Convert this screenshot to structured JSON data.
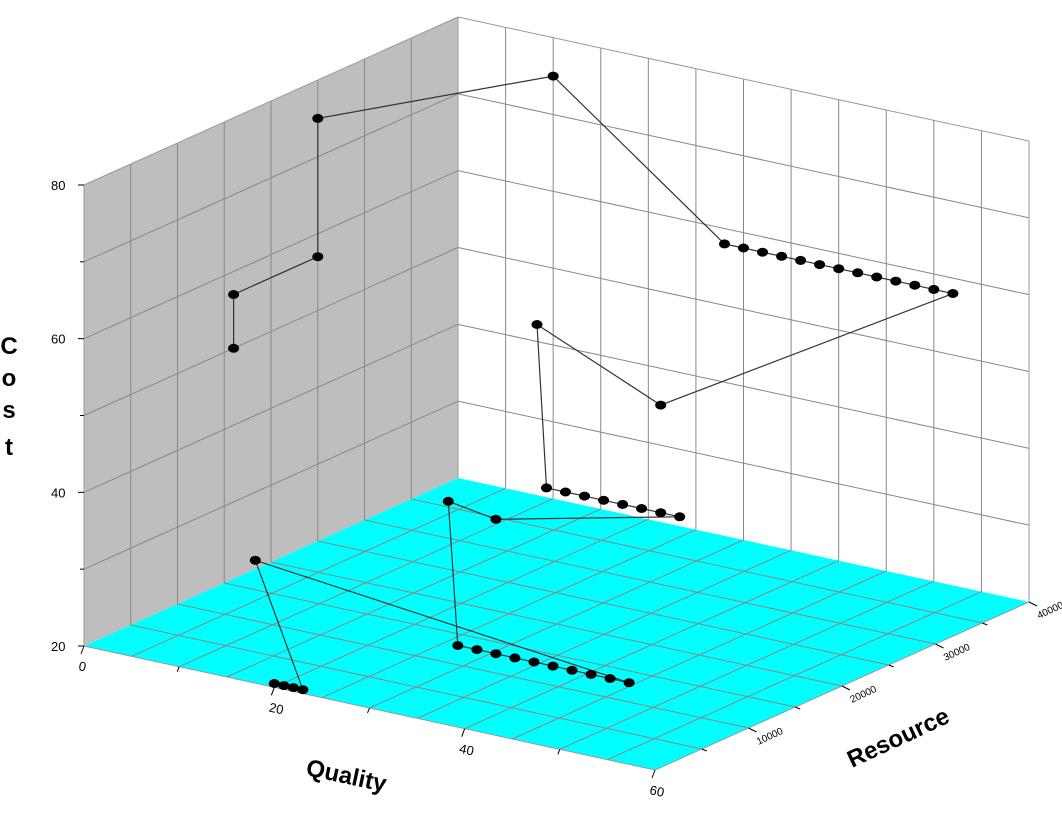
{
  "chart_data": {
    "type": "scatter3d",
    "title": "",
    "axes": {
      "x": {
        "label": "Quality",
        "range": [
          0,
          60
        ],
        "ticks": [
          "0",
          "20",
          "40",
          "60"
        ]
      },
      "y": {
        "label": "Resource",
        "range": [
          0,
          40000
        ],
        "ticks": [
          "10000",
          "20000",
          "30000",
          "40000"
        ]
      },
      "z": {
        "label": "Cost",
        "label_letters": [
          "C",
          "o",
          "s",
          "t"
        ],
        "range": [
          20,
          80
        ],
        "ticks": [
          "20",
          "40",
          "60",
          "80"
        ]
      }
    },
    "grid": true,
    "colors": {
      "floor": "#00ffff",
      "back_wall": "#ffffff",
      "side_wall": "#bebebe",
      "grid": "#888888",
      "line": "#333333",
      "marker": "#000000"
    },
    "series": [
      {
        "connected": true,
        "points": [
          [
            20,
            0,
            20.5
          ],
          [
            21,
            0,
            20.5
          ],
          [
            22,
            0,
            20.5
          ],
          [
            23,
            0,
            20.5
          ],
          [
            18,
            0,
            36
          ],
          [
            45,
            12500,
            20.5
          ],
          [
            43,
            12500,
            20.5
          ],
          [
            41,
            12500,
            20.5
          ],
          [
            39,
            12500,
            20.5
          ],
          [
            37,
            12500,
            20.5
          ],
          [
            35,
            12500,
            20.5
          ],
          [
            33,
            12500,
            20.5
          ],
          [
            31,
            12500,
            20.5
          ],
          [
            29,
            12500,
            20.5
          ],
          [
            27,
            12500,
            20.5
          ],
          [
            26,
            12500,
            39
          ],
          [
            31,
            12500,
            38
          ],
          [
            40,
            23000,
            35
          ],
          [
            38,
            23000,
            35
          ],
          [
            36,
            23000,
            35
          ],
          [
            34,
            23000,
            35
          ],
          [
            32,
            23000,
            35
          ],
          [
            30,
            23000,
            35
          ],
          [
            28,
            23000,
            35
          ],
          [
            26,
            23000,
            35
          ],
          [
            25,
            23000,
            56
          ],
          [
            38,
            23000,
            49
          ],
          [
            52,
            40000,
            58
          ],
          [
            50,
            40000,
            58
          ],
          [
            48,
            40000,
            58
          ],
          [
            46,
            40000,
            58
          ],
          [
            44,
            40000,
            58
          ],
          [
            42,
            40000,
            58
          ],
          [
            40,
            40000,
            58
          ],
          [
            38,
            40000,
            58
          ],
          [
            36,
            40000,
            58
          ],
          [
            34,
            40000,
            58
          ],
          [
            32,
            40000,
            58
          ],
          [
            30,
            40000,
            58
          ],
          [
            28,
            40000,
            58
          ],
          [
            10,
            40000,
            75
          ],
          [
            0,
            25000,
            75
          ],
          [
            0,
            25000,
            57
          ],
          [
            0,
            16000,
            57
          ],
          [
            0,
            16000,
            50
          ]
        ]
      }
    ]
  }
}
